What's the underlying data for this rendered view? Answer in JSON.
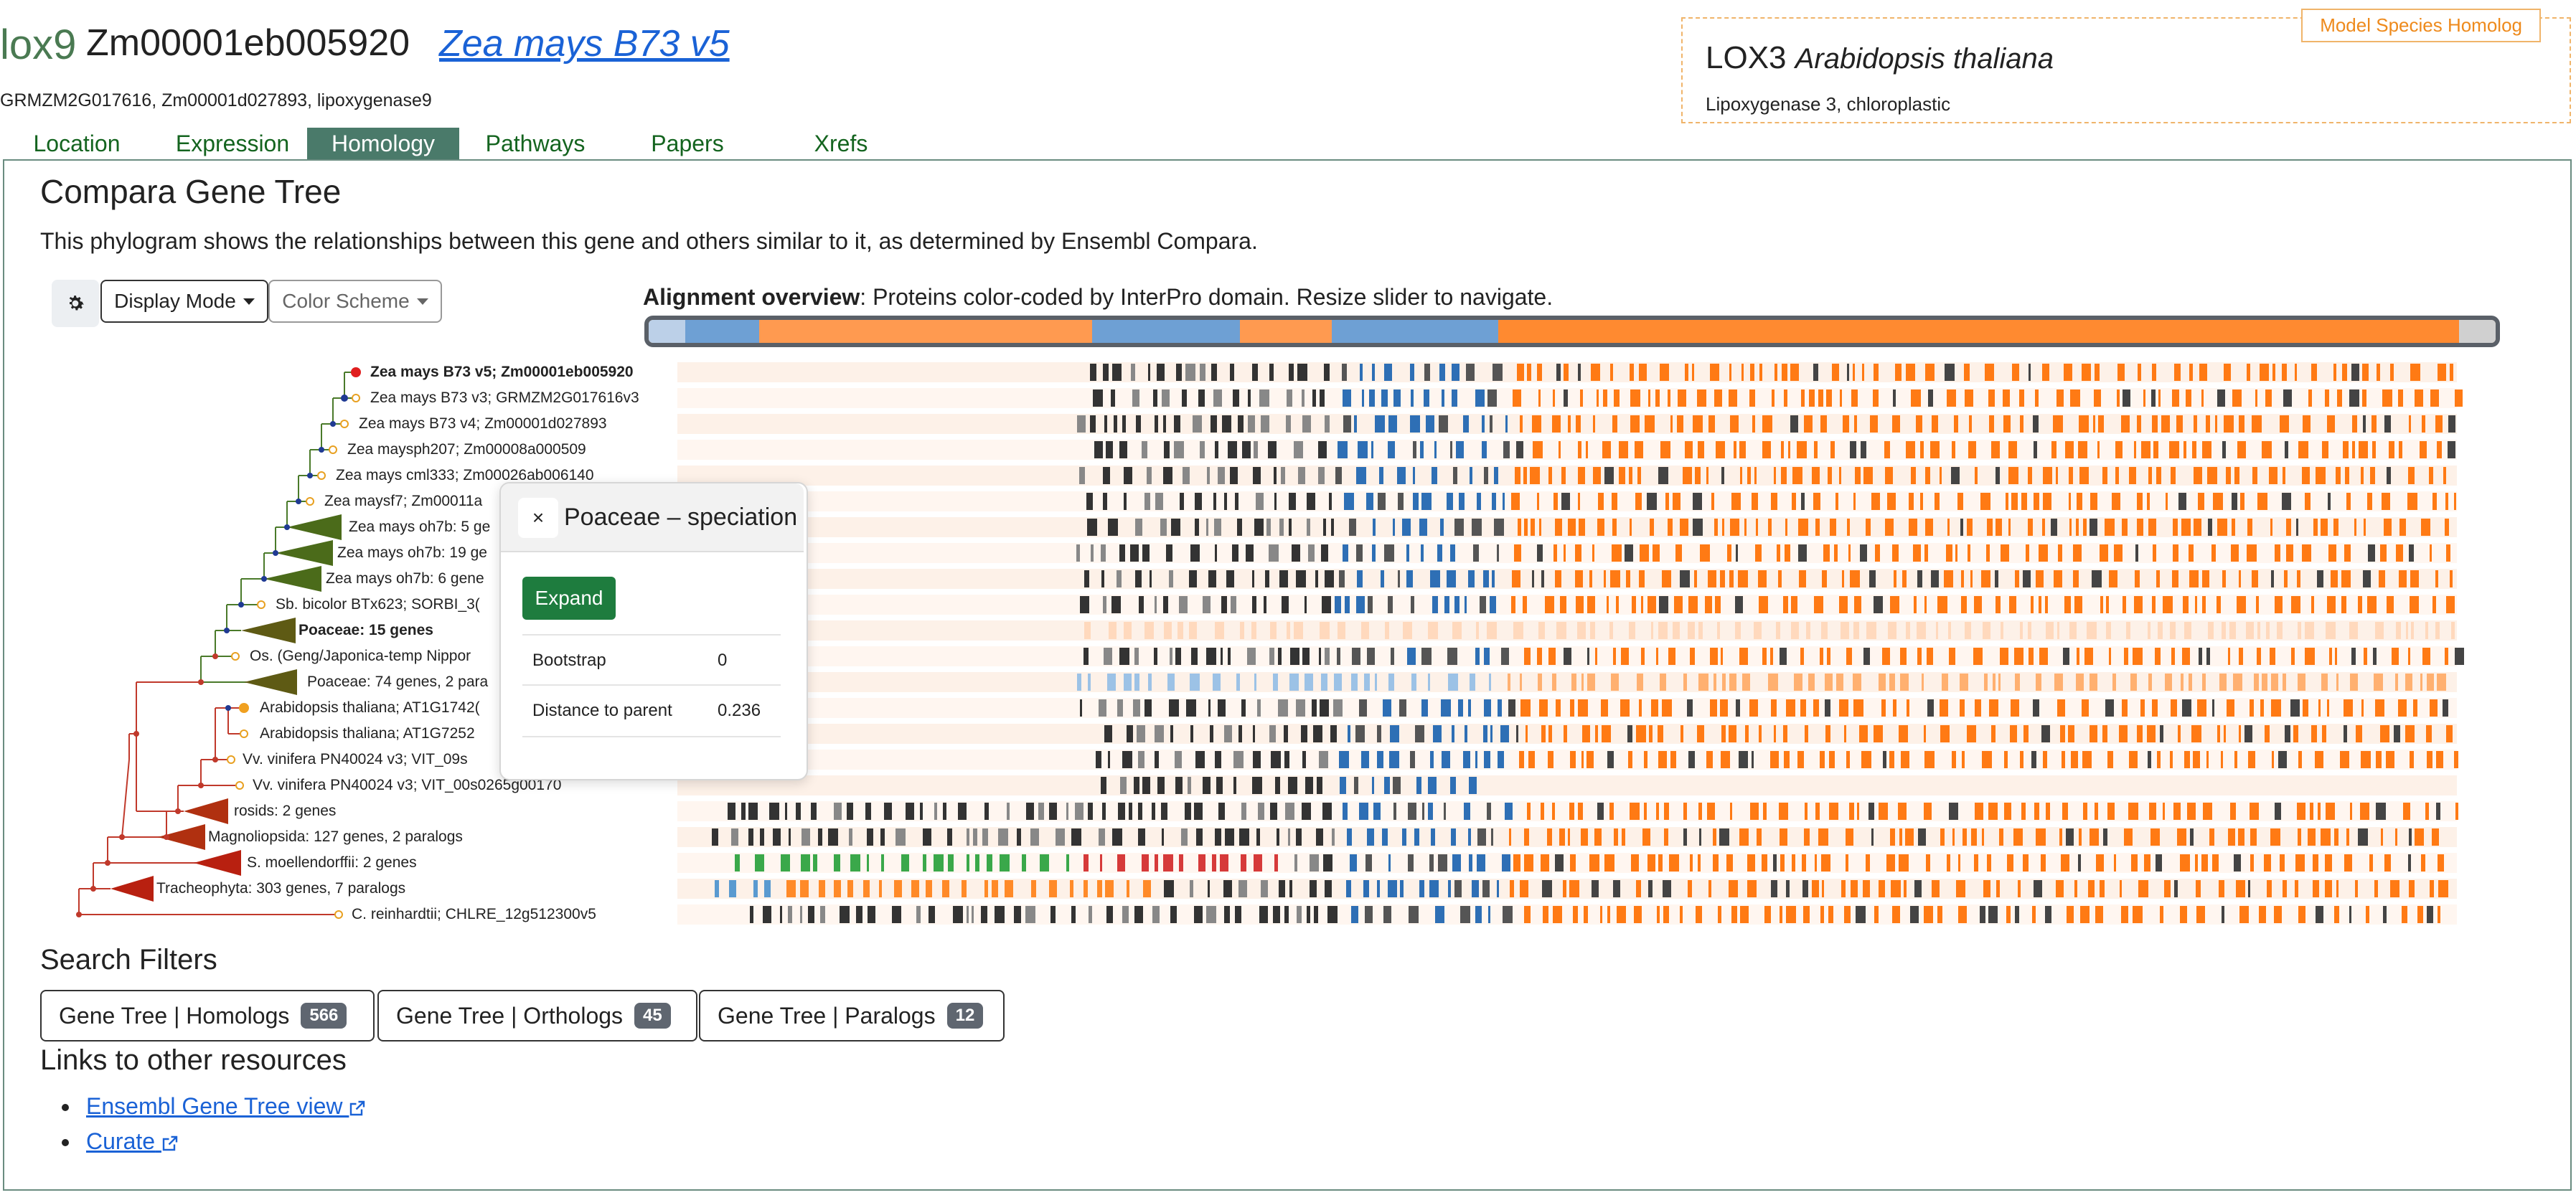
{
  "header": {
    "gene_name": "lox9",
    "gene_id": "Zm00001eb005920",
    "species_link": "Zea mays B73 v5",
    "synonyms": "GRMZM2G017616, Zm00001d027893, lipoxygenase9"
  },
  "homolog": {
    "badge": "Model Species Homolog",
    "name": "LOX3",
    "species": "Arabidopsis thaliana",
    "description": "Lipoxygenase 3, chloroplastic"
  },
  "tabs": [
    {
      "label": "Location",
      "active": false
    },
    {
      "label": "Expression",
      "active": false
    },
    {
      "label": "Homology",
      "active": true
    },
    {
      "label": "Pathways",
      "active": false
    },
    {
      "label": "Papers",
      "active": false
    },
    {
      "label": "Xrefs",
      "active": false
    }
  ],
  "section": {
    "title": "Compara Gene Tree",
    "description": "This phylogram shows the relationships between this gene and others similar to it, as determined by Ensembl Compara."
  },
  "toolbar": {
    "gear_icon": "gear-icon",
    "display_mode": "Display Mode",
    "color_scheme": "Color Scheme"
  },
  "alignment": {
    "heading_bold": "Alignment overview",
    "heading_rest": ": Proteins color-coded by InterPro domain. Resize slider to navigate."
  },
  "tree": {
    "leaves": [
      {
        "label": "Zea mays B73 v5; Zm00001eb005920",
        "bold": true
      },
      {
        "label": "Zea mays B73 v3; GRMZM2G017616v3",
        "bold": false
      },
      {
        "label": "Zea mays B73 v4; Zm00001d027893",
        "bold": false
      },
      {
        "label": "Zea maysph207; Zm00008a000509",
        "bold": false
      },
      {
        "label": "Zea mays cml333; Zm00026ab006140",
        "bold": false
      },
      {
        "label": "Zea maysf7; Zm00011a",
        "bold": false
      },
      {
        "label": "Zea mays oh7b: 5 ge",
        "bold": false
      },
      {
        "label": "Zea mays oh7b: 19 ge",
        "bold": false
      },
      {
        "label": "Zea mays oh7b: 6 gene",
        "bold": false
      },
      {
        "label": "Sb. bicolor BTx623; SORBI_3(",
        "bold": false
      },
      {
        "label": "Poaceae: 15 genes",
        "bold": true
      },
      {
        "label": "Os. (Geng/Japonica-temp Nippor",
        "bold": false
      },
      {
        "label": "Poaceae: 74 genes, 2 para",
        "bold": false
      },
      {
        "label": "Arabidopsis thaliana; AT1G1742(",
        "bold": false
      },
      {
        "label": "Arabidopsis thaliana; AT1G7252",
        "bold": false
      },
      {
        "label": "Vv. vinifera PN40024 v3; VIT_09s",
        "bold": false
      },
      {
        "label": "Vv. vinifera PN40024 v3; VIT_00s0265g00170",
        "bold": false
      },
      {
        "label": "rosids: 2 genes",
        "bold": false
      },
      {
        "label": "Magnoliopsida: 127 genes, 2 paralogs",
        "bold": false
      },
      {
        "label": "S. moellendorffii: 2 genes",
        "bold": false
      },
      {
        "label": "Tracheophyta: 303 genes, 7 paralogs",
        "bold": false
      },
      {
        "label": "C. reinhardtii; CHLRE_12g512300v5",
        "bold": false
      }
    ]
  },
  "popover": {
    "close_icon": "close-icon",
    "close_label": "×",
    "title": "Poaceae – speciation",
    "expand_label": "Expand",
    "rows": [
      {
        "key": "Bootstrap",
        "value": "0"
      },
      {
        "key": "Distance to parent",
        "value": "0.236"
      }
    ]
  },
  "filters": {
    "title": "Search Filters",
    "items": [
      {
        "label": "Gene Tree | Homologs",
        "count": "566"
      },
      {
        "label": "Gene Tree | Orthologs",
        "count": "45"
      },
      {
        "label": "Gene Tree | Paralogs",
        "count": "12"
      }
    ]
  },
  "links": {
    "title": "Links to other resources",
    "items": [
      {
        "label": "Ensembl Gene Tree view",
        "icon": "external-link-icon"
      },
      {
        "label": "Curate",
        "icon": "external-link-icon"
      }
    ]
  },
  "colors": {
    "accent_green": "#4a7a6a",
    "link_blue": "#1a62d6",
    "interpro_orange": "#ff7f0e",
    "interpro_blue": "#3a7dc0",
    "interpro_dark": "#333333",
    "interpro_green": "#3aa84a",
    "interpro_red": "#d63a3a",
    "homolog_border": "#f0b46a"
  }
}
